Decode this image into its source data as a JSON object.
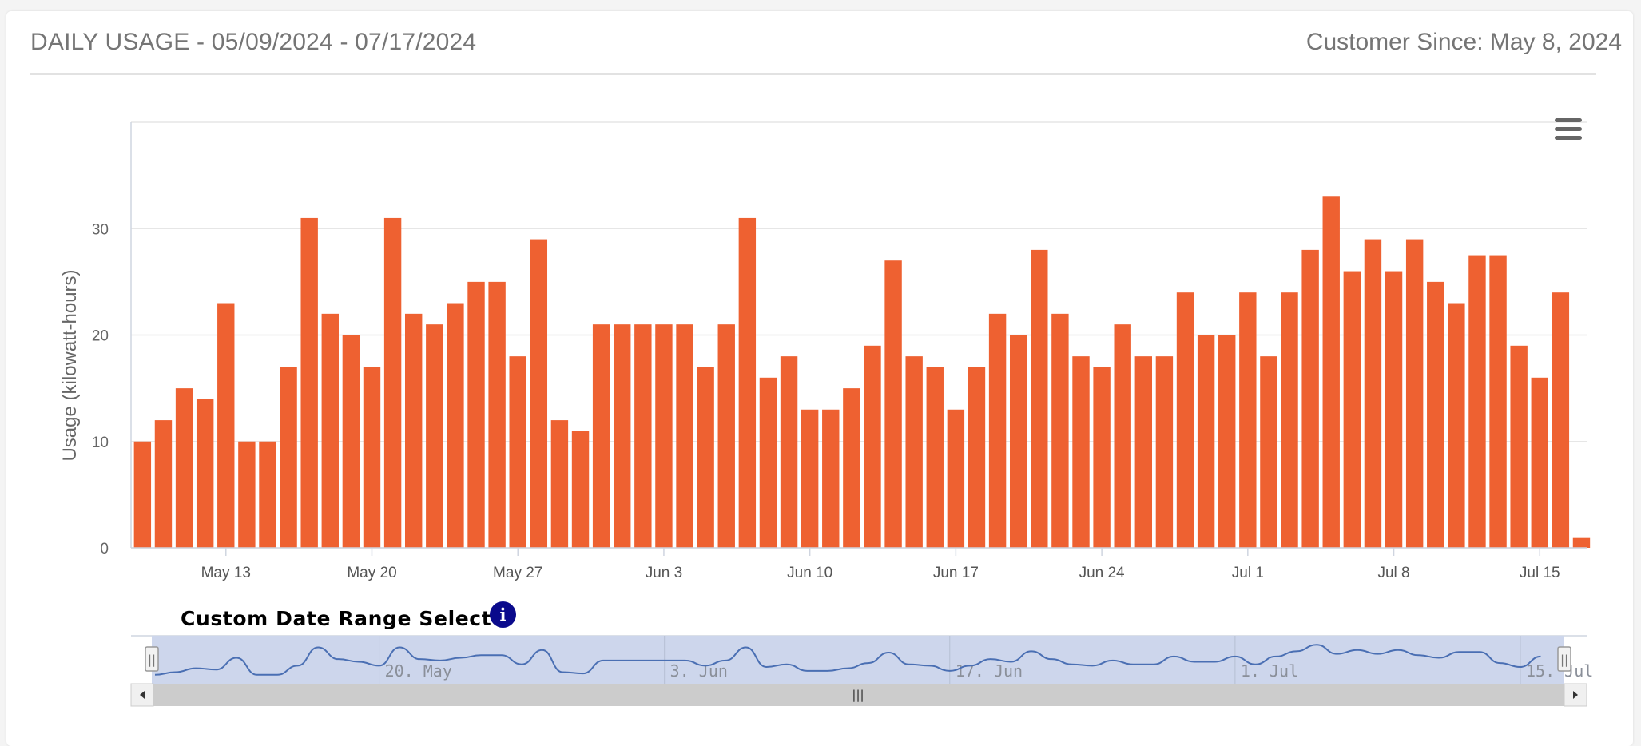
{
  "header": {
    "title": "DAILY USAGE - 05/09/2024 - 07/17/2024",
    "customer_since": "Customer Since: May 8, 2024"
  },
  "menu": {
    "icon": "hamburger-menu-icon"
  },
  "navigator": {
    "title": "Custom Date Range Selector",
    "info_icon": "info-icon",
    "info_glyph": "i",
    "tick_labels": [
      "20. May",
      "3. Jun",
      "17. Jun",
      "1. Jul",
      "15. Jul"
    ],
    "tick_dates": [
      "2024-05-20",
      "2024-06-03",
      "2024-06-17",
      "2024-07-01",
      "2024-07-15"
    ],
    "selected_range": [
      "2024-05-09",
      "2024-07-17"
    ],
    "handle_glyph": "||",
    "scrollbar_grip": "|||"
  },
  "colors": {
    "bar": "#ee6131",
    "navigator_fill": "#cdd6ec",
    "navigator_line": "#4a6fb3",
    "scrollbar_track": "#cccccc",
    "scrollbar_arrow_bg": "#f0f0f0",
    "info_icon": "#0a0a8c"
  },
  "chart_data": {
    "type": "bar",
    "ylabel": "Usage (kilowatt-hours)",
    "ylim": [
      0,
      40
    ],
    "yticks": [
      0,
      10,
      20,
      30
    ],
    "xticks": [
      {
        "label": "May 13",
        "date": "2024-05-13"
      },
      {
        "label": "May 20",
        "date": "2024-05-20"
      },
      {
        "label": "May 27",
        "date": "2024-05-27"
      },
      {
        "label": "Jun 3",
        "date": "2024-06-03"
      },
      {
        "label": "Jun 10",
        "date": "2024-06-10"
      },
      {
        "label": "Jun 17",
        "date": "2024-06-17"
      },
      {
        "label": "Jun 24",
        "date": "2024-06-24"
      },
      {
        "label": "Jul 1",
        "date": "2024-07-01"
      },
      {
        "label": "Jul 8",
        "date": "2024-07-08"
      },
      {
        "label": "Jul 15",
        "date": "2024-07-15"
      }
    ],
    "grid": true,
    "legend": "none",
    "x": [
      "2024-05-09",
      "2024-05-10",
      "2024-05-11",
      "2024-05-12",
      "2024-05-13",
      "2024-05-14",
      "2024-05-15",
      "2024-05-16",
      "2024-05-17",
      "2024-05-18",
      "2024-05-19",
      "2024-05-20",
      "2024-05-21",
      "2024-05-22",
      "2024-05-23",
      "2024-05-24",
      "2024-05-25",
      "2024-05-26",
      "2024-05-27",
      "2024-05-28",
      "2024-05-29",
      "2024-05-30",
      "2024-05-31",
      "2024-06-01",
      "2024-06-02",
      "2024-06-03",
      "2024-06-04",
      "2024-06-05",
      "2024-06-06",
      "2024-06-07",
      "2024-06-08",
      "2024-06-09",
      "2024-06-10",
      "2024-06-11",
      "2024-06-12",
      "2024-06-13",
      "2024-06-14",
      "2024-06-15",
      "2024-06-16",
      "2024-06-17",
      "2024-06-18",
      "2024-06-19",
      "2024-06-20",
      "2024-06-21",
      "2024-06-22",
      "2024-06-23",
      "2024-06-24",
      "2024-06-25",
      "2024-06-26",
      "2024-06-27",
      "2024-06-28",
      "2024-06-29",
      "2024-06-30",
      "2024-07-01",
      "2024-07-02",
      "2024-07-03",
      "2024-07-04",
      "2024-07-05",
      "2024-07-06",
      "2024-07-07",
      "2024-07-08",
      "2024-07-09",
      "2024-07-10",
      "2024-07-11",
      "2024-07-12",
      "2024-07-13",
      "2024-07-14",
      "2024-07-15",
      "2024-07-16",
      "2024-07-17"
    ],
    "values": [
      10,
      12,
      15,
      14,
      23,
      10,
      10,
      17,
      31,
      22,
      20,
      17,
      31,
      22,
      21,
      23,
      25,
      25,
      18,
      29,
      12,
      11,
      21,
      21,
      21,
      21,
      21,
      17,
      21,
      31,
      16,
      18,
      13,
      13,
      15,
      19,
      27,
      18,
      17,
      13,
      17,
      22,
      20,
      28,
      22,
      18,
      17,
      21,
      18,
      18,
      24,
      20,
      20,
      24,
      18,
      24,
      28,
      33,
      26,
      29,
      26,
      29,
      25,
      23,
      27.5,
      27.5,
      19,
      16,
      24,
      1
    ]
  }
}
